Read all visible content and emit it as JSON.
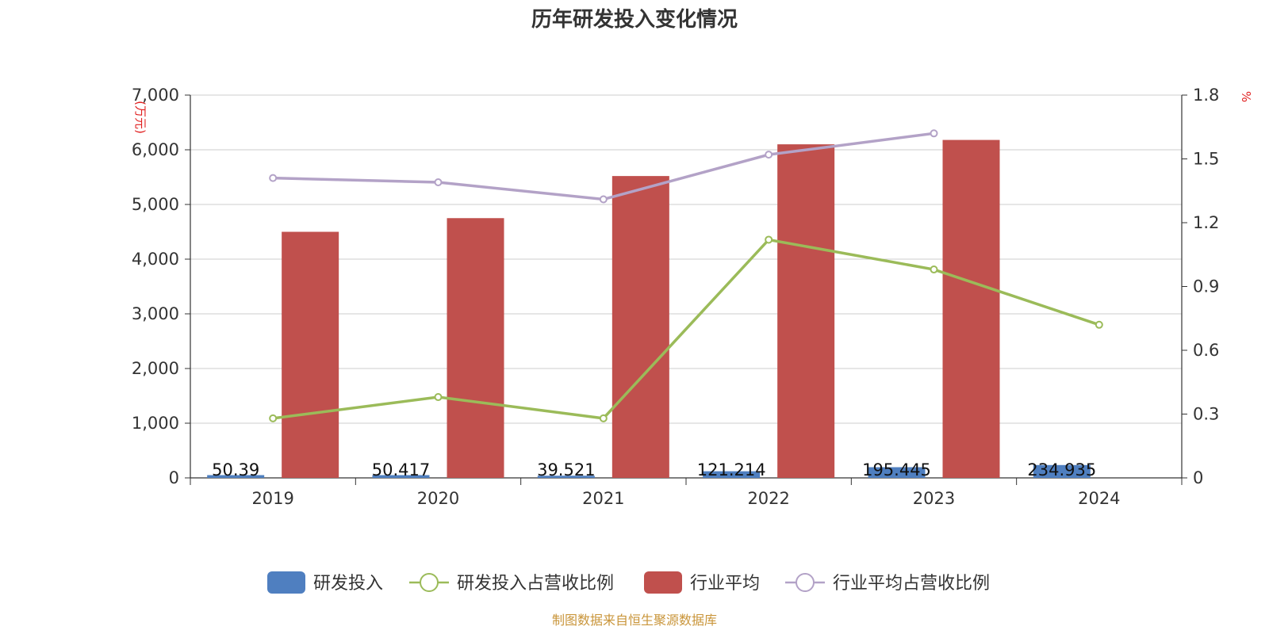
{
  "chart_data": {
    "type": "bar",
    "title": "历年研发投入变化情况",
    "categories": [
      "2019",
      "2020",
      "2021",
      "2022",
      "2023",
      "2024"
    ],
    "left_axis": {
      "unit": "(万元)",
      "range": [
        0,
        7000
      ],
      "ticks": [
        "0",
        "1,000",
        "2,000",
        "3,000",
        "4,000",
        "5,000",
        "6,000",
        "7,000"
      ]
    },
    "right_axis": {
      "unit": "%",
      "range": [
        0,
        1.8
      ],
      "ticks": [
        "0",
        "0.3",
        "0.6",
        "0.9",
        "1.2",
        "1.5",
        "1.8"
      ]
    },
    "grid": true,
    "legend_position": "bottom",
    "series": [
      {
        "name": "研发投入",
        "type": "bar",
        "axis": "left",
        "color": "#4f7fc0",
        "values": [
          50.39,
          50.417,
          39.521,
          121.214,
          195.445,
          234.935
        ],
        "labels": [
          "50.39",
          "50.417",
          "39.521",
          "121.214",
          "195.445",
          "234.935"
        ]
      },
      {
        "name": "研发投入占营收比例",
        "type": "line",
        "axis": "right",
        "color": "#9bbb59",
        "values": [
          0.28,
          0.38,
          0.28,
          1.12,
          0.98,
          0.72
        ]
      },
      {
        "name": "行业平均",
        "type": "bar",
        "axis": "left",
        "color": "#c0504d",
        "values": [
          4500,
          4750,
          5520,
          6100,
          6180,
          null
        ]
      },
      {
        "name": "行业平均占营收比例",
        "type": "line",
        "axis": "right",
        "color": "#b3a2c7",
        "values": [
          1.41,
          1.39,
          1.31,
          1.52,
          1.62,
          null
        ]
      }
    ],
    "source": "制图数据来自恒生聚源数据库"
  }
}
